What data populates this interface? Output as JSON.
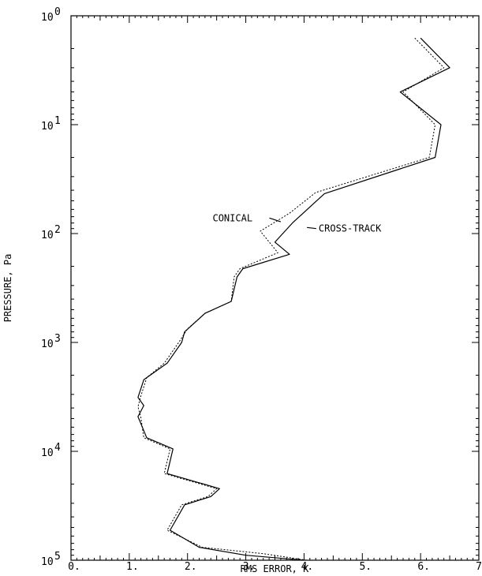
{
  "chart_data": {
    "type": "line",
    "xlabel": "RMS ERROR, K",
    "ylabel": "PRESSURE, Pa",
    "xlim": [
      0,
      7
    ],
    "ylim": [
      1,
      100000
    ],
    "y_scale": "log",
    "grid": false,
    "x_ticks": [
      {
        "value": 0,
        "label": "0."
      },
      {
        "value": 1,
        "label": "1."
      },
      {
        "value": 2,
        "label": "2."
      },
      {
        "value": 3,
        "label": "3."
      },
      {
        "value": 4,
        "label": "4."
      },
      {
        "value": 5,
        "label": "5."
      },
      {
        "value": 6,
        "label": "6."
      },
      {
        "value": 7,
        "label": "7."
      }
    ],
    "y_ticks": [
      {
        "value": 1,
        "base": "10",
        "exp": "0"
      },
      {
        "value": 10,
        "base": "10",
        "exp": "1"
      },
      {
        "value": 100,
        "base": "10",
        "exp": "2"
      },
      {
        "value": 1000,
        "base": "10",
        "exp": "3"
      },
      {
        "value": 10000,
        "base": "10",
        "exp": "4"
      },
      {
        "value": 100000,
        "base": "10",
        "exp": "5"
      }
    ],
    "series": [
      {
        "name": "CROSS-TRACK",
        "style": "solid",
        "color": "#000000",
        "points": [
          [
            6.0,
            1.6
          ],
          [
            6.5,
            3.0
          ],
          [
            5.65,
            5.0
          ],
          [
            6.35,
            10.0
          ],
          [
            6.25,
            20.0
          ],
          [
            4.35,
            43.0
          ],
          [
            3.8,
            80.0
          ],
          [
            3.5,
            120.0
          ],
          [
            3.75,
            155.0
          ],
          [
            2.95,
            210.0
          ],
          [
            2.85,
            250.0
          ],
          [
            2.75,
            420.0
          ],
          [
            2.3,
            540.0
          ],
          [
            1.95,
            800.0
          ],
          [
            1.9,
            1000.0
          ],
          [
            1.65,
            1550.0
          ],
          [
            1.25,
            2200.0
          ],
          [
            1.15,
            3200.0
          ],
          [
            1.25,
            3800.0
          ],
          [
            1.15,
            4800.0
          ],
          [
            1.3,
            7500.0
          ],
          [
            1.75,
            9500.0
          ],
          [
            1.65,
            16000.0
          ],
          [
            2.55,
            22000.0
          ],
          [
            2.4,
            26000.0
          ],
          [
            1.95,
            31000.0
          ],
          [
            1.7,
            53000.0
          ],
          [
            2.2,
            76000.0
          ],
          [
            3.0,
            90000.0
          ],
          [
            4.0,
            100000.0
          ]
        ]
      },
      {
        "name": "CONICAL",
        "style": "dotted",
        "color": "#000000",
        "points": [
          [
            5.9,
            1.6
          ],
          [
            6.4,
            3.0
          ],
          [
            5.7,
            5.0
          ],
          [
            6.25,
            10.0
          ],
          [
            6.15,
            20.0
          ],
          [
            4.2,
            42.0
          ],
          [
            3.75,
            65.0
          ],
          [
            3.25,
            95.0
          ],
          [
            3.55,
            150.0
          ],
          [
            2.9,
            210.0
          ],
          [
            2.8,
            250.0
          ],
          [
            2.75,
            420.0
          ],
          [
            2.3,
            540.0
          ],
          [
            2.0,
            750.0
          ],
          [
            1.85,
            1000.0
          ],
          [
            1.6,
            1550.0
          ],
          [
            1.3,
            2100.0
          ],
          [
            1.2,
            3100.0
          ],
          [
            1.15,
            3900.0
          ],
          [
            1.2,
            4900.0
          ],
          [
            1.25,
            7500.0
          ],
          [
            1.7,
            9500.0
          ],
          [
            1.6,
            16000.0
          ],
          [
            2.5,
            22000.0
          ],
          [
            2.35,
            26000.0
          ],
          [
            1.9,
            31000.0
          ],
          [
            1.65,
            53000.0
          ],
          [
            2.25,
            76000.0
          ],
          [
            3.3,
            87000.0
          ],
          [
            4.05,
            100000.0
          ]
        ]
      }
    ],
    "annotations": [
      {
        "text": "CONICAL",
        "x": 2.43,
        "y": 72,
        "pointer_to": [
          3.6,
          78
        ]
      },
      {
        "text": "CROSS-TRACK",
        "x": 4.25,
        "y": 90,
        "pointer_to": [
          4.05,
          88
        ]
      }
    ]
  }
}
